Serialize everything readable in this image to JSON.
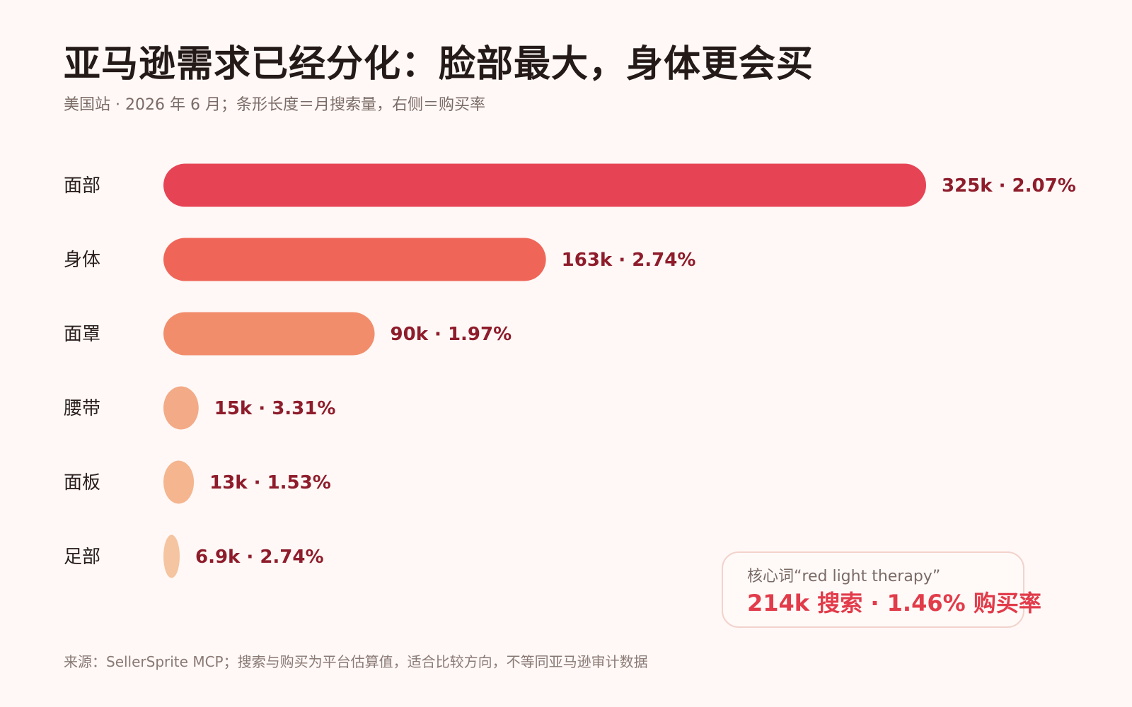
{
  "chart_data": {
    "type": "bar",
    "orientation": "horizontal",
    "title": "亚马逊需求已经分化：脸部最大，身体更会买",
    "subtitle": "美国站 · 2026 年 6 月；条形长度＝月搜索量，右侧＝购买率",
    "categories": [
      "面部",
      "身体",
      "面罩",
      "腰带",
      "面板",
      "足部"
    ],
    "values": [
      325,
      163,
      90,
      15,
      13,
      6.9
    ],
    "value_labels": [
      "325k · 2.07%",
      "163k · 2.74%",
      "90k · 1.97%",
      "15k · 3.31%",
      "13k · 1.53%",
      "6.9k · 2.74%"
    ],
    "purchase_rates": [
      2.07,
      2.74,
      1.97,
      3.31,
      1.53,
      2.74
    ],
    "bar_colors": [
      "#e64455",
      "#ef6659",
      "#f28d6c",
      "#f3aa86",
      "#f4b58f",
      "#f5c4a0"
    ],
    "label_color": "#8e1c2b",
    "xlim": [
      0,
      325
    ],
    "grid": false,
    "legend": "none"
  },
  "callout": {
    "label": "核心词“red light therapy”",
    "value": "214k 搜索 · 1.46% 购买率"
  },
  "footer": {
    "source": "来源：SellerSprite MCP；搜索与购买为平台估算值，适合比较方向，不等同亚马逊审计数据"
  }
}
